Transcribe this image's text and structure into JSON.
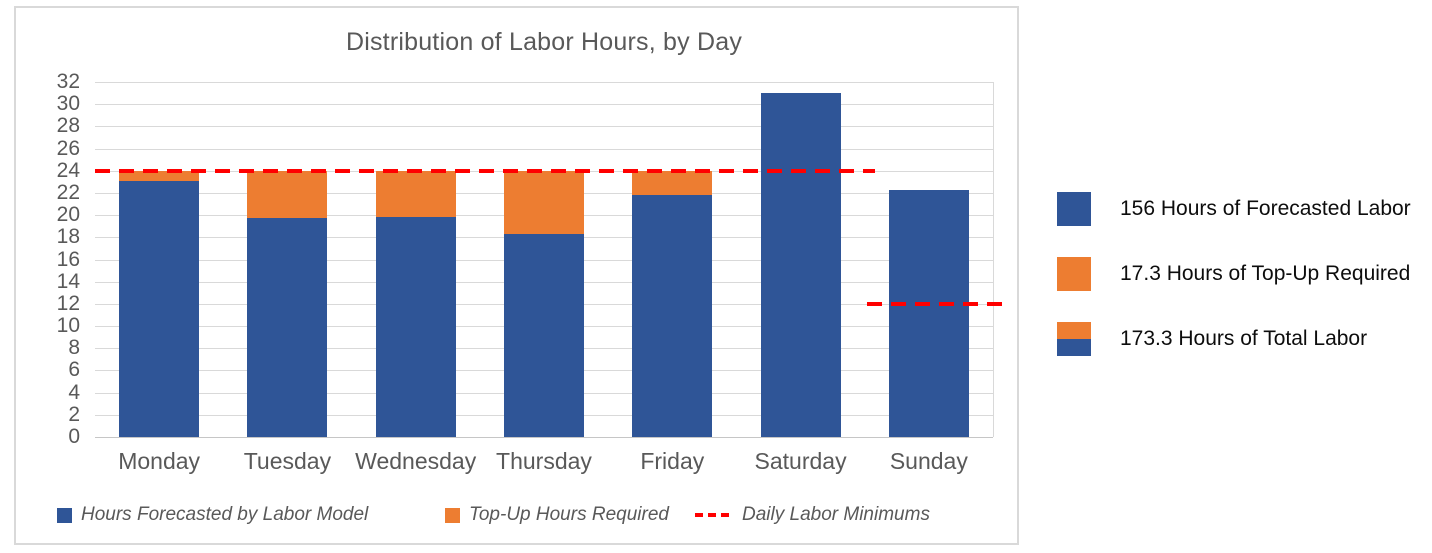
{
  "chart_data": {
    "type": "bar",
    "stacked": true,
    "title": "Distribution of Labor Hours, by Day",
    "categories": [
      "Monday",
      "Tuesday",
      "Wednesday",
      "Thursday",
      "Friday",
      "Saturday",
      "Sunday"
    ],
    "series": [
      {
        "name": "Hours Forecasted by Labor Model",
        "color": "#2F5597",
        "values": [
          23.1,
          19.7,
          19.8,
          18.3,
          21.8,
          31.0,
          22.3
        ]
      },
      {
        "name": "Top-Up Hours Required",
        "color": "#ED7D31",
        "values": [
          0.9,
          4.3,
          4.2,
          5.7,
          2.2,
          0,
          0
        ]
      }
    ],
    "reference_lines": [
      {
        "label": "Daily Labor Minimums",
        "value": 24,
        "applies_to_days": "Monday-Saturday",
        "from_slot": 0,
        "to_slot": 6.08,
        "color": "#FF0000",
        "style": "dashed"
      },
      {
        "label": "Daily Labor Minimums",
        "value": 12,
        "applies_to_days": "Sunday",
        "from_slot": 6.02,
        "to_slot": 7.1,
        "color": "#FF0000",
        "style": "dashed"
      }
    ],
    "ylim": [
      0,
      32
    ],
    "ytick_step": 2,
    "grid": "horizontal",
    "gridline_color": "#D9D9D9",
    "axis_text_color": "#595959",
    "legend_position": "bottom"
  },
  "legend": {
    "items": [
      {
        "swatch": "blue-square",
        "label": "Hours Forecasted by Labor Model"
      },
      {
        "swatch": "orange-square",
        "label": "Top-Up Hours Required"
      },
      {
        "swatch": "red-dashes",
        "label": "Daily Labor Minimums"
      }
    ]
  },
  "side_panel": {
    "items": [
      {
        "icon": "blue-square",
        "label": "156 Hours of Forecasted Labor"
      },
      {
        "icon": "orange-square",
        "label": "17.3 Hours of Top-Up Required"
      },
      {
        "icon": "stacked-orange-blue-square",
        "label": "173.3 Hours of Total Labor"
      }
    ]
  }
}
